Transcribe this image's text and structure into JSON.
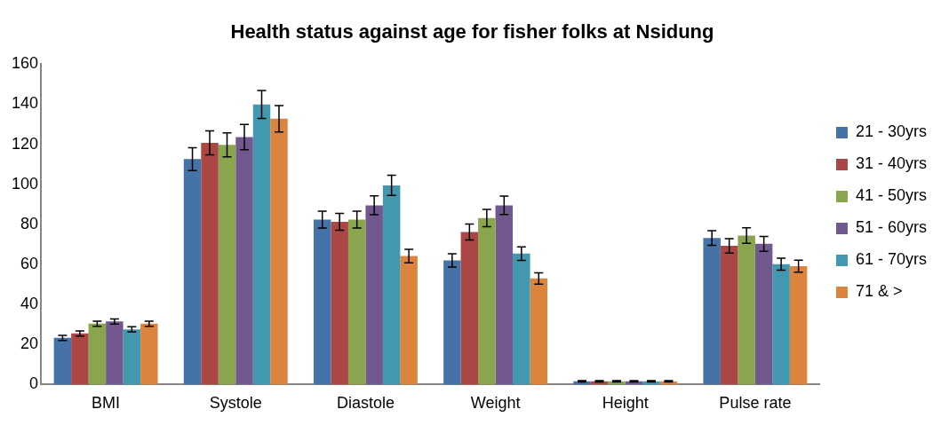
{
  "chart_data": {
    "type": "bar",
    "title": "Health status against age for fisher folks at Nsidung",
    "categories": [
      "BMI",
      "Systole",
      "Diastole",
      "Weight",
      "Height",
      "Pulse rate"
    ],
    "series": [
      {
        "name": "21 - 30yrs",
        "color": "#4572a7",
        "values": [
          23.3,
          112.6,
          82.4,
          62,
          1.6,
          73.2
        ],
        "errors": [
          1.3,
          5.7,
          4.2,
          3.3,
          0.3,
          3.7
        ]
      },
      {
        "name": "31 - 40yrs",
        "color": "#aa4643",
        "values": [
          25.5,
          120.7,
          81.3,
          76.2,
          1.6,
          69.3
        ],
        "errors": [
          1.3,
          6,
          4.2,
          4,
          0.3,
          3.6
        ]
      },
      {
        "name": "41 - 50yrs",
        "color": "#89a54e",
        "values": [
          30.4,
          119.7,
          82.4,
          83.2,
          1.6,
          74.4
        ],
        "errors": [
          1.3,
          6,
          4.2,
          4.3,
          0.3,
          3.9
        ]
      },
      {
        "name": "51 - 60yrs",
        "color": "#71588f",
        "values": [
          31.5,
          123.6,
          89.5,
          89.5,
          1.6,
          70.3
        ],
        "errors": [
          1.3,
          6.3,
          4.7,
          4.6,
          0.3,
          3.7
        ]
      },
      {
        "name": "61 - 70yrs",
        "color": "#4198af",
        "values": [
          27.6,
          139.9,
          99.5,
          65.4,
          1.6,
          60.1
        ],
        "errors": [
          1.3,
          7,
          5,
          3.4,
          0.3,
          3
        ]
      },
      {
        "name": "71 & >",
        "color": "#db843d",
        "values": [
          30.4,
          132.8,
          64.2,
          53,
          1.6,
          59.1
        ],
        "errors": [
          1.3,
          6.6,
          3.4,
          2.8,
          0.3,
          3
        ]
      }
    ],
    "ylim": [
      0,
      160
    ],
    "yticks": [
      0,
      20,
      40,
      60,
      80,
      100,
      120,
      140,
      160
    ],
    "grid": false,
    "legend": "right"
  }
}
